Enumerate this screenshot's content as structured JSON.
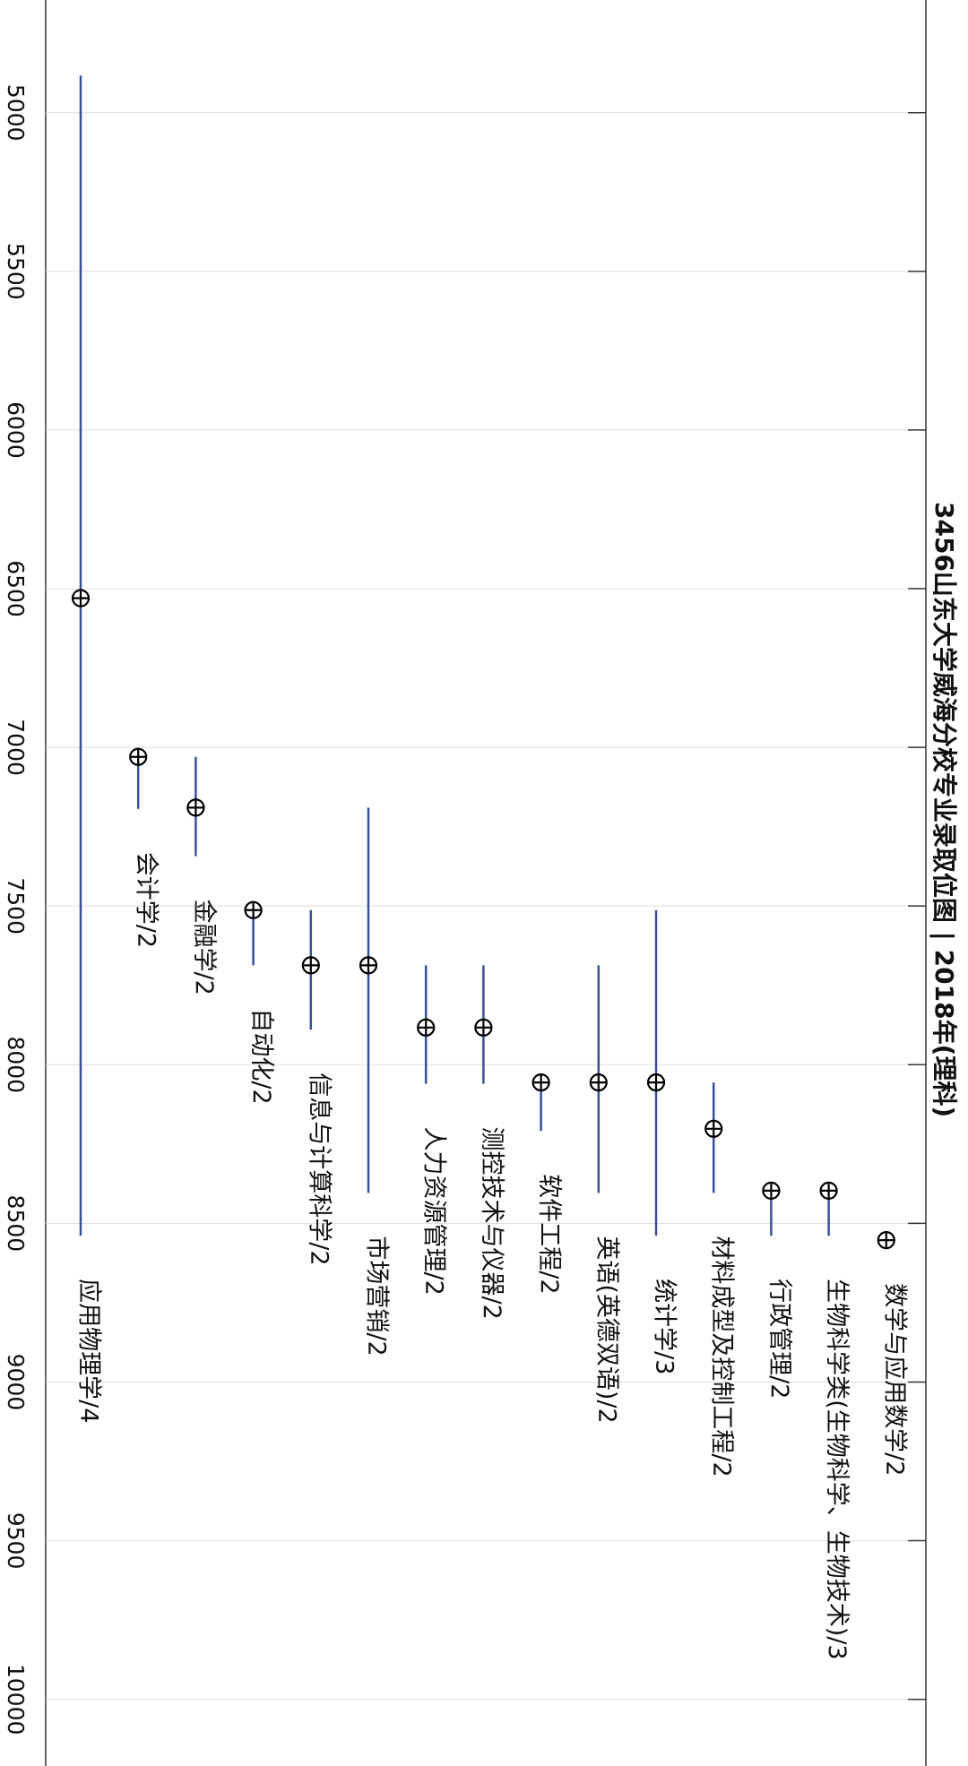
{
  "chart_data": {
    "type": "range",
    "title": "3456山东大学威海分校专业录取位图 | 2018年(理科)",
    "categories": [
      "应用物理学/4",
      "会计学/2",
      "金融学/2",
      "自动化/2",
      "信息与计算科学/2",
      "市场营销/2",
      "人力资源管理/2",
      "测控技术与仪器/2",
      "软件工程/2",
      "英语(英德双语)/2",
      "统计学/3",
      "材料成型及控制工程/2",
      "行政管理/2",
      "生物科学类(生物科学、生物技术)/3",
      "数学与应用数学/2"
    ],
    "low": [
      4883,
      7030,
      7030,
      7513,
      7513,
      7190,
      7687,
      7687,
      8056,
      7687,
      7513,
      8056,
      8397,
      8397,
      8553
    ],
    "high": [
      8539,
      7194,
      7343,
      7687,
      7890,
      8404,
      8060,
      8060,
      8209,
      8404,
      8539,
      8404,
      8539,
      8539,
      8553
    ],
    "median": [
      6530,
      7030,
      7190,
      7513,
      7687,
      7687,
      7883,
      7883,
      8056,
      8056,
      8056,
      8202,
      8397,
      8397,
      8553
    ],
    "color": "#3a4f9a",
    "ylim": [
      4645,
      10210
    ],
    "yticks": [
      5000,
      5500,
      6000,
      6500,
      7000,
      7500,
      8000,
      8500,
      9000,
      9500,
      10000
    ],
    "grid": true
  }
}
